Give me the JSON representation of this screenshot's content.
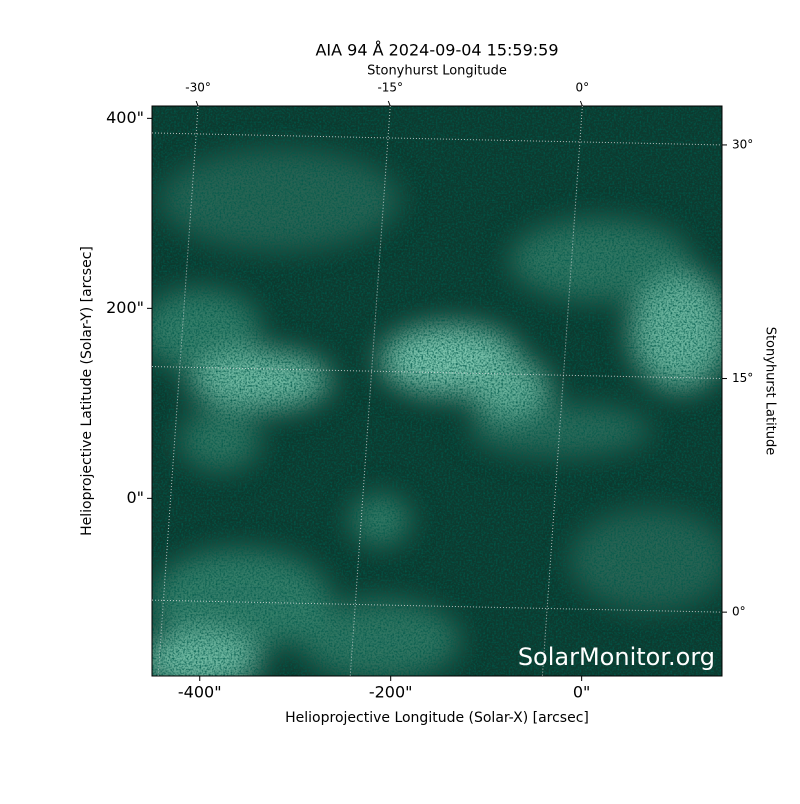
{
  "chart_data": {
    "type": "image",
    "title": "AIA 94 Å 2024-09-04 15:59:59",
    "xlabel": "Helioprojective Longitude (Solar-X) [arcsec]",
    "ylabel": "Helioprojective Latitude (Solar-Y) [arcsec]",
    "x2label": "Stonyhurst Longitude",
    "y2label": "Stonyhurst Latitude",
    "annotation": "SolarMonitor.org",
    "xlim": [
      -450,
      147
    ],
    "ylim": [
      -187,
      413
    ],
    "xticks": [
      {
        "value": -400,
        "label": "-400\""
      },
      {
        "value": -200,
        "label": "-200\""
      },
      {
        "value": 0,
        "label": "0\""
      }
    ],
    "yticks": [
      {
        "value": 0,
        "label": "0\""
      },
      {
        "value": 200,
        "label": "200\""
      },
      {
        "value": 400,
        "label": "400\""
      }
    ],
    "x2lim": [
      -33.6,
      10.9
    ],
    "x2ticks": [
      {
        "value": -30,
        "label": "-30°"
      },
      {
        "value": -15,
        "label": "-15°"
      },
      {
        "value": 0,
        "label": "0°"
      }
    ],
    "y2lim": [
      -4.1,
      32.5
    ],
    "y2ticks": [
      {
        "value": 0,
        "label": "0°"
      },
      {
        "value": 15,
        "label": "15°"
      },
      {
        "value": 30,
        "label": "30°"
      }
    ],
    "grid": true,
    "color": "#0d3a2f"
  }
}
